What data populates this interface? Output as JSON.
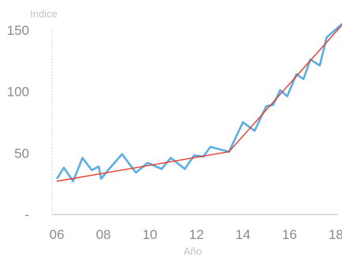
{
  "chart_data": {
    "type": "line",
    "ylabel": "Indice",
    "xlabel": "Año",
    "xlim": [
      5.5,
      18.5
    ],
    "ylim": [
      0,
      165
    ],
    "x_ticks": [
      6,
      8,
      10,
      12,
      14,
      16,
      18
    ],
    "x_tick_labels": [
      "06",
      "08",
      "10",
      "12",
      "14",
      "16",
      "18"
    ],
    "y_ticks": [
      0,
      50,
      100,
      150
    ],
    "y_tick_labels": [
      "-",
      "50",
      "100",
      "150"
    ],
    "grid": false,
    "series": [
      {
        "color": "#5aaee3",
        "points": [
          [
            6.0,
            29
          ],
          [
            6.3,
            38
          ],
          [
            6.7,
            27
          ],
          [
            7.1,
            46
          ],
          [
            7.5,
            36
          ],
          [
            7.8,
            39
          ],
          [
            7.9,
            29
          ],
          [
            8.2,
            36
          ],
          [
            8.8,
            49
          ],
          [
            9.4,
            34
          ],
          [
            9.9,
            42
          ],
          [
            10.5,
            37
          ],
          [
            10.9,
            46
          ],
          [
            11.5,
            37
          ],
          [
            11.9,
            48
          ],
          [
            12.3,
            47
          ],
          [
            12.6,
            55
          ],
          [
            13.4,
            51
          ],
          [
            14.0,
            75
          ],
          [
            14.5,
            68
          ],
          [
            15.0,
            88
          ],
          [
            15.3,
            89
          ],
          [
            15.6,
            101
          ],
          [
            15.9,
            96
          ],
          [
            16.3,
            114
          ],
          [
            16.6,
            110
          ],
          [
            16.9,
            126
          ],
          [
            17.3,
            121
          ],
          [
            17.6,
            144
          ],
          [
            18.4,
            157
          ]
        ]
      },
      {
        "color": "#e83a2a",
        "points": [
          [
            6.0,
            27
          ],
          [
            13.4,
            51
          ],
          [
            18.4,
            157
          ]
        ]
      }
    ]
  }
}
